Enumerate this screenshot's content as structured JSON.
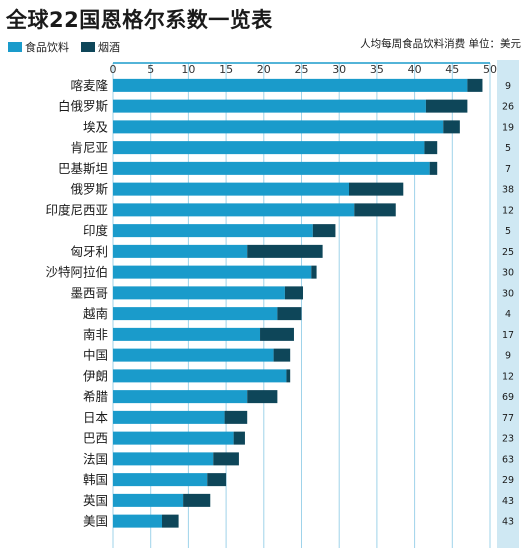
{
  "title": "全球22国恩格尔系数一览表",
  "note": "人均每周食品饮料消费 单位：美元",
  "colors": {
    "food": "#1a9bcb",
    "alcohol": "#0e4659",
    "grid": "#9fd3ea",
    "right_panel": "#cfe8f3",
    "axis_line": "#1a9bcb"
  },
  "chart_data": {
    "type": "bar",
    "orientation": "horizontal",
    "stacked": true,
    "title": "全球22国恩格尔系数一览表",
    "xlim": [
      0,
      50
    ],
    "x_ticks": [
      0,
      5,
      10,
      15,
      20,
      25,
      30,
      35,
      40,
      45,
      50
    ],
    "grid": true,
    "legend_position": "top-left",
    "categories": [
      "喀麦隆",
      "白俄罗斯",
      "埃及",
      "肯尼亚",
      "巴基斯坦",
      "俄罗斯",
      "印度尼西亚",
      "印度",
      "匈牙利",
      "沙特阿拉伯",
      "墨西哥",
      "越南",
      "南非",
      "中国",
      "伊朗",
      "希腊",
      "日本",
      "巴西",
      "法国",
      "韩国",
      "英国",
      "美国"
    ],
    "series": [
      {
        "name": "食品饮料",
        "values": [
          47.0,
          41.5,
          43.8,
          41.3,
          42.0,
          31.3,
          32.0,
          26.5,
          17.8,
          26.3,
          22.8,
          21.8,
          19.5,
          21.3,
          23.0,
          17.8,
          14.8,
          16.0,
          13.3,
          12.5,
          9.3,
          6.5
        ]
      },
      {
        "name": "烟酒",
        "values": [
          2.0,
          5.5,
          2.2,
          1.7,
          1.0,
          7.2,
          5.5,
          3.0,
          10.0,
          0.7,
          2.4,
          3.2,
          4.5,
          2.2,
          0.5,
          4.0,
          3.0,
          1.5,
          3.4,
          2.5,
          3.6,
          2.2
        ]
      }
    ],
    "weekly_spend_usd": [
      9,
      26,
      19,
      5,
      7,
      38,
      12,
      5,
      25,
      30,
      30,
      4,
      17,
      9,
      12,
      69,
      77,
      23,
      63,
      29,
      43,
      43
    ]
  }
}
